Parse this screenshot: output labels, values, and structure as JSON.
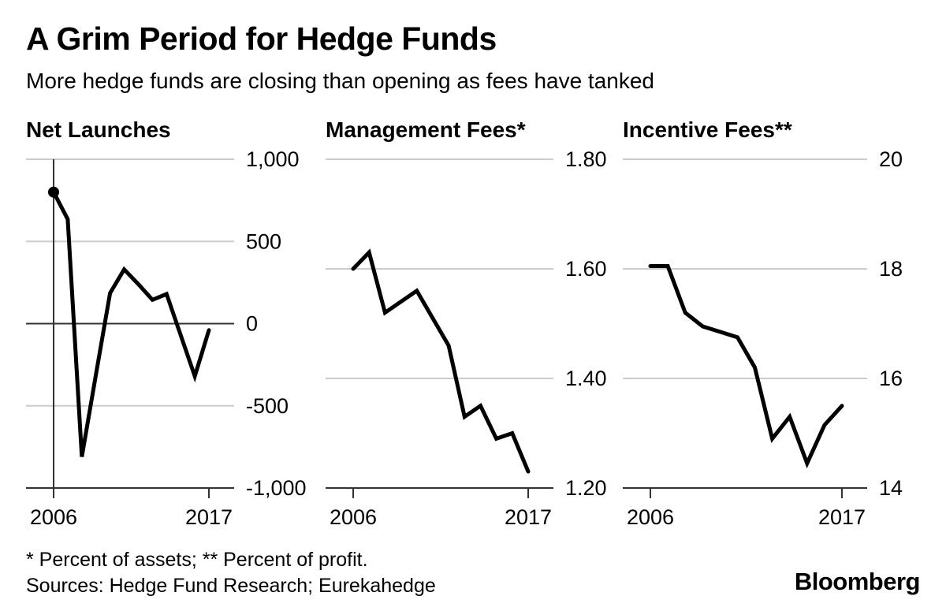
{
  "page": {
    "title": "A Grim Period for Hedge Funds",
    "subtitle": "More hedge funds are closing than opening as fees have tanked",
    "footnote": "* Percent of assets; ** Percent of profit.",
    "sources": "Sources: Hedge Fund Research; Eurekahedge",
    "logo": "Bloomberg"
  },
  "colors": {
    "data_line": "#000000",
    "gridline": "#cccccc",
    "axis": "#333333",
    "text": "#000000",
    "background": "#ffffff"
  },
  "chart_data": [
    {
      "type": "line",
      "title": "Net Launches",
      "xlabel": "",
      "ylabel": "",
      "x": [
        2006,
        2007,
        2008,
        2009,
        2010,
        2011,
        2012,
        2013,
        2014,
        2015,
        2016,
        2017
      ],
      "values": [
        800,
        635,
        -810,
        -310,
        185,
        330,
        240,
        145,
        180,
        -70,
        -320,
        -40
      ],
      "ylim": [
        -1000,
        1000
      ],
      "yticks": [
        {
          "value": 1000,
          "label": "1,000"
        },
        {
          "value": 500,
          "label": "500"
        },
        {
          "value": 0,
          "label": "0"
        },
        {
          "value": -500,
          "label": "-500"
        },
        {
          "value": -1000,
          "label": "-1,000"
        }
      ],
      "xticks": [
        {
          "value": 2006,
          "label": "2006"
        },
        {
          "value": 2017,
          "label": "2017"
        }
      ],
      "grid": true,
      "legend": false,
      "zero_axis": true,
      "y_axis_line_at_first_tick": true,
      "start_marker": true
    },
    {
      "type": "line",
      "title": "Management Fees*",
      "xlabel": "",
      "ylabel": "",
      "x": [
        2006,
        2007,
        2008,
        2009,
        2010,
        2011,
        2012,
        2013,
        2014,
        2015,
        2016,
        2017
      ],
      "values": [
        1.6,
        1.63,
        1.52,
        1.54,
        1.56,
        1.51,
        1.46,
        1.33,
        1.35,
        1.29,
        1.3,
        1.23
      ],
      "ylim": [
        1.2,
        1.8
      ],
      "yticks": [
        {
          "value": 1.8,
          "label": "1.80"
        },
        {
          "value": 1.6,
          "label": "1.60"
        },
        {
          "value": 1.4,
          "label": "1.40"
        },
        {
          "value": 1.2,
          "label": "1.20"
        }
      ],
      "xticks": [
        {
          "value": 2006,
          "label": "2006"
        },
        {
          "value": 2017,
          "label": "2017"
        }
      ],
      "grid": true,
      "legend": false,
      "zero_axis": false,
      "y_axis_line_at_first_tick": false,
      "start_marker": false
    },
    {
      "type": "line",
      "title": "Incentive Fees**",
      "xlabel": "",
      "ylabel": "",
      "x": [
        2006,
        2007,
        2008,
        2009,
        2010,
        2011,
        2012,
        2013,
        2014,
        2015,
        2016,
        2017
      ],
      "values": [
        18.05,
        18.05,
        17.2,
        16.95,
        16.85,
        16.75,
        16.2,
        14.9,
        15.3,
        14.45,
        15.15,
        15.5
      ],
      "ylim": [
        14,
        20
      ],
      "yticks": [
        {
          "value": 20,
          "label": "20"
        },
        {
          "value": 18,
          "label": "18"
        },
        {
          "value": 16,
          "label": "16"
        },
        {
          "value": 14,
          "label": "14"
        }
      ],
      "xticks": [
        {
          "value": 2006,
          "label": "2006"
        },
        {
          "value": 2017,
          "label": "2017"
        }
      ],
      "grid": true,
      "legend": false,
      "zero_axis": false,
      "y_axis_line_at_first_tick": false,
      "start_marker": false
    }
  ]
}
